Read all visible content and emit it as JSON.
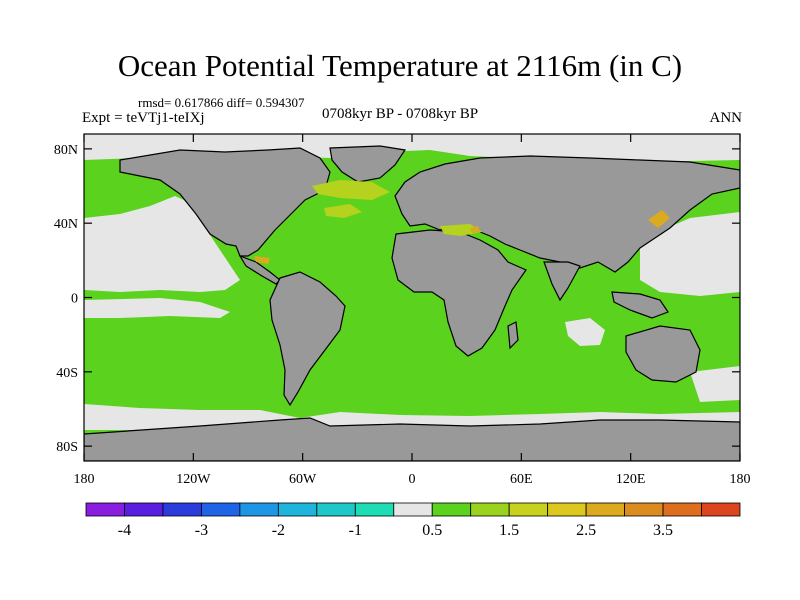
{
  "title": "Ocean Potential Temperature at 2116m (in C)",
  "stats": "rmsd= 0.617866 diff= 0.594307",
  "experiment": "Expt = teVTj1-teIXj",
  "period": "0708kyr BP - 0708kyr BP",
  "season": "ANN",
  "lat_ticks": [
    {
      "label": "80N",
      "value": 80
    },
    {
      "label": "40N",
      "value": 40
    },
    {
      "label": "0",
      "value": 0
    },
    {
      "label": "40S",
      "value": -40
    },
    {
      "label": "80S",
      "value": -80
    }
  ],
  "lon_ticks": [
    {
      "label": "180",
      "value": -180
    },
    {
      "label": "120W",
      "value": -120
    },
    {
      "label": "60W",
      "value": -60
    },
    {
      "label": "0",
      "value": 0
    },
    {
      "label": "60E",
      "value": 60
    },
    {
      "label": "120E",
      "value": 120
    },
    {
      "label": "180",
      "value": 180
    }
  ],
  "colorbar": {
    "colors": [
      "#8a1ee0",
      "#5a1ee0",
      "#2a3cdc",
      "#1e64e6",
      "#1e96e6",
      "#1eb4dc",
      "#1ec8c8",
      "#1edcb4",
      "#e6e6e6",
      "#5ad21e",
      "#9ad21e",
      "#c8d21e",
      "#dcc81e",
      "#dcaa1e",
      "#dc8c1e",
      "#dc6e1e",
      "#dc461e"
    ],
    "labels": [
      {
        "text": "-4",
        "after": 1
      },
      {
        "text": "-3",
        "after": 3
      },
      {
        "text": "-2",
        "after": 5
      },
      {
        "text": "-1",
        "after": 7
      },
      {
        "text": "0.5",
        "after": 9
      },
      {
        "text": "1.5",
        "after": 11
      },
      {
        "text": "2.5",
        "after": 13
      },
      {
        "text": "3.5",
        "after": 15
      }
    ]
  },
  "legend_colors": {
    "land": "#999999",
    "near_zero": "#e6e6e6",
    "ocean_anomaly": "#5ad21e",
    "warm_patch": "#b4d21e",
    "hot_patch": "#dcaa1e"
  }
}
